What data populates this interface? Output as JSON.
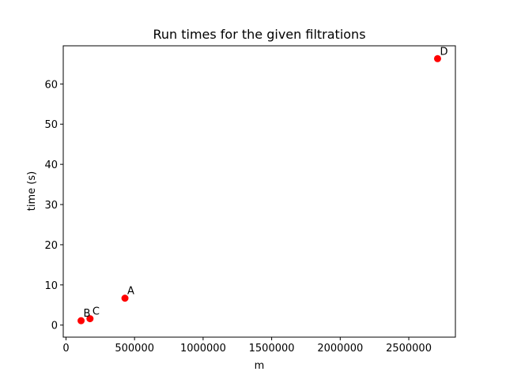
{
  "chart_data": {
    "type": "scatter",
    "title": "Run times for the given filtrations",
    "xlabel": "m",
    "ylabel": "time (s)",
    "xlim": [
      -20000,
      2840000
    ],
    "ylim": [
      -3.0,
      69.5
    ],
    "xticks": [
      0,
      500000,
      1000000,
      1500000,
      2000000,
      2500000
    ],
    "xtick_labels": [
      "0",
      "500000",
      "1000000",
      "1500000",
      "2000000",
      "2500000"
    ],
    "yticks": [
      0,
      10,
      20,
      30,
      40,
      50,
      60
    ],
    "ytick_labels": [
      "0",
      "10",
      "20",
      "30",
      "40",
      "50",
      "60"
    ],
    "grid": false,
    "marker_color": "#ff0000",
    "points": [
      {
        "label": "A",
        "x": 430000,
        "y": 6.7
      },
      {
        "label": "B",
        "x": 110000,
        "y": 1.1
      },
      {
        "label": "C",
        "x": 175000,
        "y": 1.6
      },
      {
        "label": "D",
        "x": 2710000,
        "y": 66.3
      }
    ]
  }
}
